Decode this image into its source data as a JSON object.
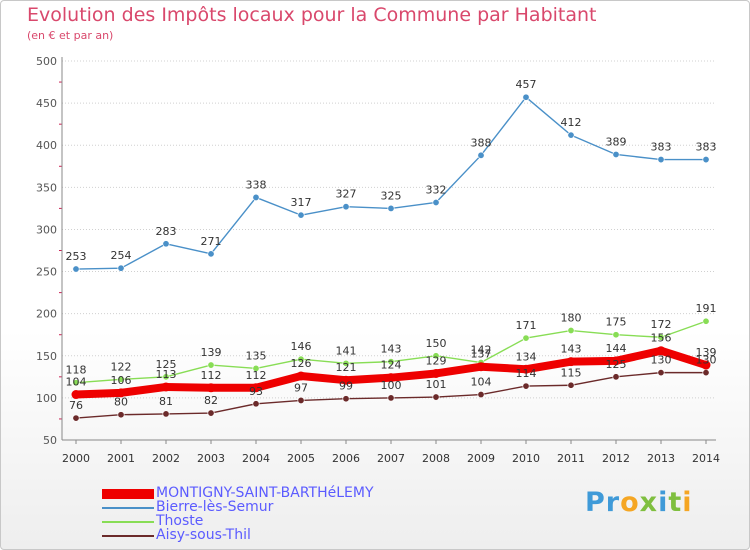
{
  "header": {
    "title": "Evolution des Impôts locaux pour la Commune par Habitant",
    "subtitle": "(en € et par an)"
  },
  "logo": {
    "text": "Proxiti"
  },
  "chart_data": {
    "type": "line",
    "title": "Evolution des Impôts locaux pour la Commune par Habitant",
    "subtitle": "(en € et par an)",
    "xlabel": "",
    "ylabel": "",
    "x": [
      2000,
      2001,
      2002,
      2003,
      2004,
      2005,
      2006,
      2007,
      2008,
      2009,
      2010,
      2011,
      2012,
      2013,
      2014
    ],
    "ylim": [
      50,
      500
    ],
    "yticks": [
      50,
      100,
      150,
      200,
      250,
      300,
      350,
      400,
      450,
      500
    ],
    "grid": "horizontal",
    "legend_position": "bottom-left",
    "series": [
      {
        "name": "MONTIGNY-SAINT-BARTHéLEMY",
        "color": "#ee0000",
        "values": [
          104,
          106,
          113,
          112,
          112,
          126,
          121,
          124,
          129,
          137,
          134,
          143,
          144,
          156,
          139
        ]
      },
      {
        "name": "Bierre-lès-Semur",
        "color": "#4a90c8",
        "values": [
          253,
          254,
          283,
          271,
          338,
          317,
          327,
          325,
          332,
          388,
          457,
          412,
          389,
          383,
          383
        ]
      },
      {
        "name": "Thoste",
        "color": "#88dd55",
        "values": [
          118,
          122,
          125,
          139,
          135,
          146,
          141,
          143,
          150,
          142,
          171,
          180,
          175,
          172,
          191
        ]
      },
      {
        "name": "Aisy-sous-Thil",
        "color": "#6b2a2a",
        "values": [
          76,
          80,
          81,
          82,
          93,
          97,
          99,
          100,
          101,
          104,
          114,
          115,
          125,
          130,
          130
        ]
      }
    ]
  }
}
